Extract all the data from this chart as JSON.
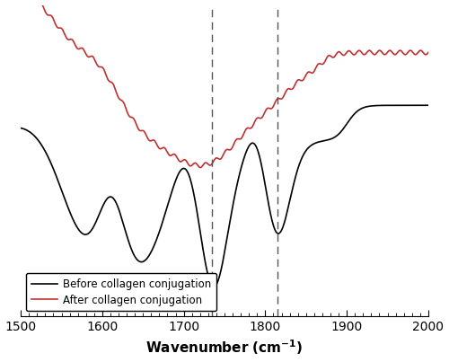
{
  "xlabel": "Wavenumber (cm$^{-1}$)",
  "xlim_left": 2000,
  "xlim_right": 1500,
  "xticks": [
    2000,
    1900,
    1800,
    1700,
    1600,
    1500
  ],
  "dashed_lines": [
    1815,
    1735
  ],
  "legend_labels": [
    "Before collagen conjugation",
    "After collagen conjugation"
  ],
  "line_colors": [
    "#000000",
    "#c03030"
  ],
  "background_color": "#ffffff"
}
